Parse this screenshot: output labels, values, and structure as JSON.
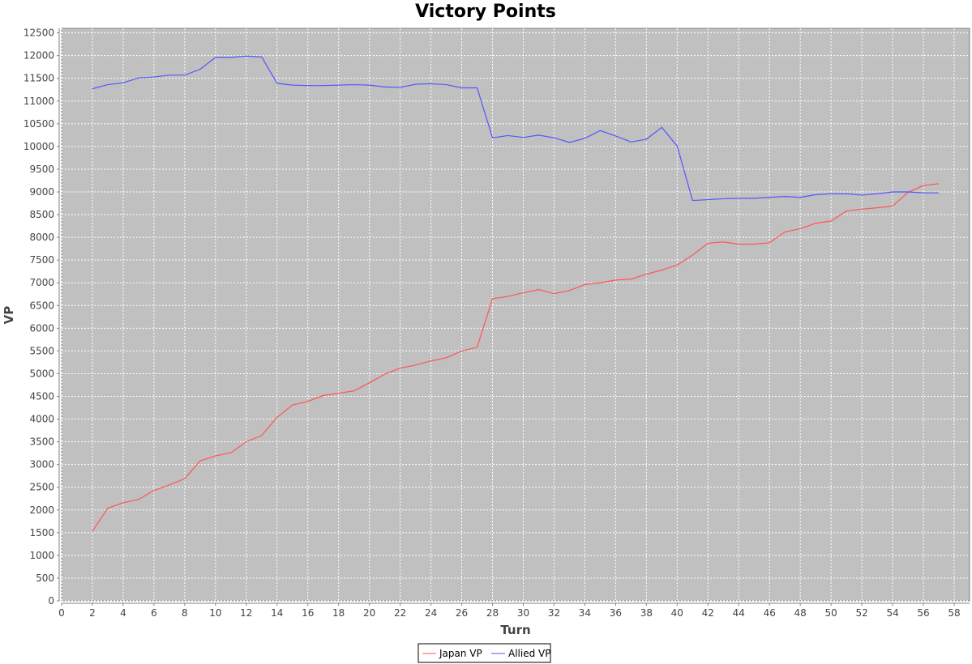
{
  "chart_data": {
    "type": "line",
    "title": "Victory Points",
    "xlabel": "Turn",
    "ylabel": "VP",
    "xlim": [
      0,
      59
    ],
    "ylim": [
      0,
      12600
    ],
    "x_ticks": [
      0,
      2,
      4,
      6,
      8,
      10,
      12,
      14,
      16,
      18,
      20,
      22,
      24,
      26,
      28,
      30,
      32,
      34,
      36,
      38,
      40,
      42,
      44,
      46,
      48,
      50,
      52,
      54,
      56,
      58
    ],
    "y_ticks": [
      0,
      500,
      1000,
      1500,
      2000,
      2500,
      3000,
      3500,
      4000,
      4500,
      5000,
      5500,
      6000,
      6500,
      7000,
      7500,
      8000,
      8500,
      9000,
      9500,
      10000,
      10500,
      11000,
      11500,
      12000,
      12500
    ],
    "grid": true,
    "legend": "bottom",
    "background": "#c0c0c0",
    "x": [
      2,
      3,
      4,
      5,
      6,
      7,
      8,
      9,
      10,
      11,
      12,
      13,
      14,
      15,
      16,
      17,
      18,
      19,
      20,
      21,
      22,
      23,
      24,
      25,
      26,
      27,
      28,
      29,
      30,
      31,
      32,
      33,
      34,
      35,
      36,
      37,
      38,
      39,
      40,
      41,
      42,
      43,
      44,
      45,
      46,
      47,
      48,
      49,
      50,
      51,
      52,
      53,
      54,
      55,
      56,
      57
    ],
    "series": [
      {
        "name": "Japan VP",
        "color": "#ff5555",
        "values": [
          1530,
          2040,
          2160,
          2230,
          2430,
          2550,
          2690,
          3080,
          3190,
          3260,
          3500,
          3640,
          4040,
          4310,
          4390,
          4520,
          4570,
          4620,
          4800,
          4990,
          5120,
          5190,
          5280,
          5350,
          5500,
          5580,
          6650,
          6700,
          6780,
          6850,
          6760,
          6830,
          6960,
          7000,
          7060,
          7080,
          7190,
          7280,
          7390,
          7610,
          7870,
          7900,
          7850,
          7850,
          7880,
          8120,
          8190,
          8310,
          8360,
          8580,
          8620,
          8650,
          8690,
          8990,
          9140,
          9180
        ]
      },
      {
        "name": "Allied VP",
        "color": "#5555ff",
        "values": [
          11270,
          11360,
          11400,
          11510,
          11530,
          11570,
          11570,
          11700,
          11960,
          11960,
          11990,
          11970,
          11390,
          11350,
          11340,
          11340,
          11350,
          11360,
          11350,
          11310,
          11300,
          11370,
          11380,
          11360,
          11290,
          11290,
          10190,
          10240,
          10200,
          10250,
          10190,
          10090,
          10180,
          10350,
          10230,
          10100,
          10160,
          10420,
          10010,
          8810,
          8830,
          8850,
          8860,
          8860,
          8880,
          8900,
          8880,
          8940,
          8960,
          8960,
          8930,
          8960,
          9000,
          9000,
          8980,
          8980
        ]
      }
    ]
  }
}
